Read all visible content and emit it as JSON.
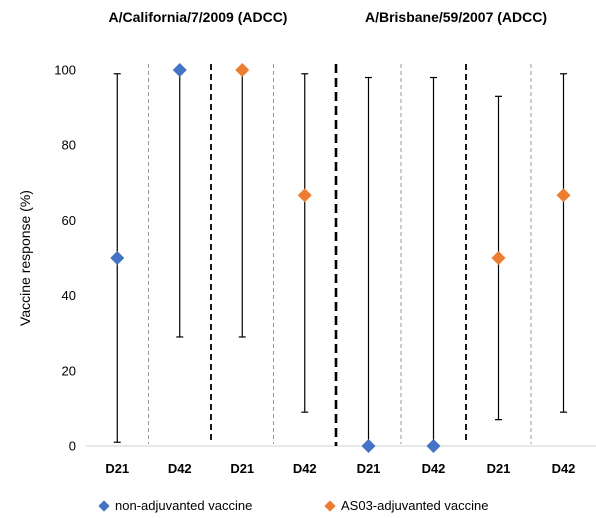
{
  "chart_data": [
    {
      "type": "scatter",
      "title": "A/California/7/2009 (ADCC)",
      "ylabel": "Vaccine response (%)",
      "ylim": [
        0,
        100
      ],
      "yticks": [
        "0",
        "20",
        "40",
        "60",
        "80",
        "100"
      ],
      "categories": [
        "D21",
        "D42",
        "D21",
        "D42"
      ],
      "groups": [
        "non-adjuvanted vaccine",
        "non-adjuvanted vaccine",
        "AS03-adjuvanted vaccine",
        "AS03-adjuvanted vaccine"
      ],
      "values": [
        50,
        100,
        100,
        66.7
      ],
      "error_low": [
        1,
        29,
        29,
        9
      ],
      "error_high": [
        99,
        100,
        100,
        99
      ]
    },
    {
      "type": "scatter",
      "title": "A/Brisbane/59/2007 (ADCC)",
      "ylim": [
        0,
        100
      ],
      "categories": [
        "D21",
        "D42",
        "D21",
        "D42"
      ],
      "groups": [
        "non-adjuvanted vaccine",
        "non-adjuvanted vaccine",
        "AS03-adjuvanted vaccine",
        "AS03-adjuvanted vaccine"
      ],
      "values": [
        0,
        0,
        50,
        66.7
      ],
      "error_low": [
        0,
        0,
        7,
        9
      ],
      "error_high": [
        98,
        98,
        93,
        99
      ]
    }
  ],
  "legend": [
    {
      "label": "non-adjuvanted vaccine",
      "color": "#4472C4"
    },
    {
      "label": "AS03-adjuvanted vaccine",
      "color": "#ED7D31"
    }
  ],
  "colors": {
    "non-adjuvanted vaccine": "#4472C4",
    "AS03-adjuvanted vaccine": "#ED7D31"
  }
}
